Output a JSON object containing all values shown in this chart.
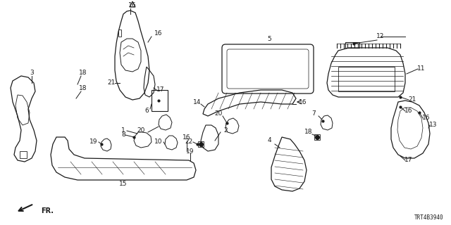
{
  "diagram_id": "TRT4B3940",
  "background_color": "#ffffff",
  "line_color": "#1a1a1a",
  "figsize": [
    6.4,
    3.2
  ],
  "dpi": 100
}
